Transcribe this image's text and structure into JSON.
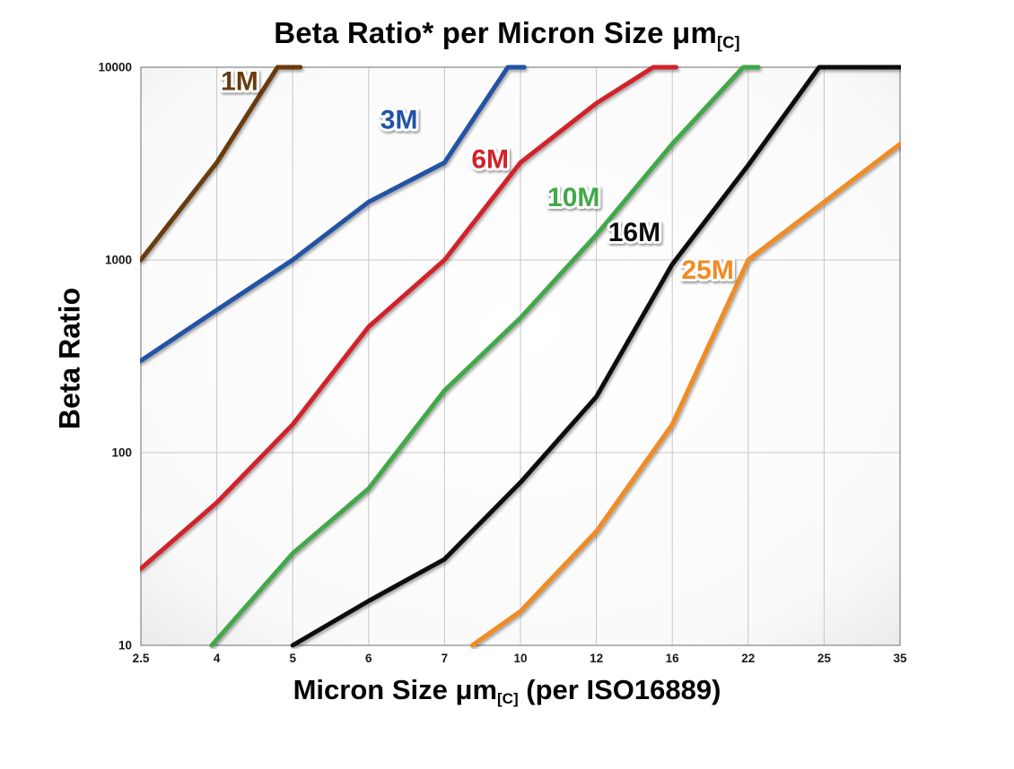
{
  "title": {
    "text": "Beta Ratio* per Micron Size μm",
    "subscript": "[C]"
  },
  "y_axis": {
    "label": "Beta Ratio"
  },
  "x_axis": {
    "label_pre": "Micron Size μm",
    "label_subscript": "[C]",
    "label_post": " (per ISO16889)"
  },
  "chart_data": {
    "type": "line",
    "title": "Beta Ratio* per Micron Size μm[C]",
    "xlabel": "Micron Size μm[C] (per ISO16889)",
    "ylabel": "Beta Ratio",
    "x_scale": "categorical",
    "x_ticks": [
      2.5,
      4,
      5,
      6,
      7,
      10,
      12,
      16,
      22,
      25,
      35
    ],
    "y_scale": "log",
    "y_ticks": [
      10,
      100,
      1000,
      10000
    ],
    "ylim": [
      10,
      10000
    ],
    "grid": true,
    "legend_position": "inline-labels",
    "grid_color": "#c7c7c7",
    "frame_color": "#8f8f8f",
    "series": [
      {
        "name": "1M",
        "color": "#6b3a10",
        "points": [
          [
            2.5,
            1000
          ],
          [
            4,
            3200
          ],
          [
            4.8,
            10000
          ],
          [
            5.1,
            10000
          ]
        ]
      },
      {
        "name": "3M",
        "color": "#2053a4",
        "points": [
          [
            2.5,
            300
          ],
          [
            4,
            550
          ],
          [
            5,
            1000
          ],
          [
            6,
            2000
          ],
          [
            7,
            3200
          ],
          [
            9.5,
            10000
          ],
          [
            10.1,
            10000
          ]
        ]
      },
      {
        "name": "6M",
        "color": "#d2202a",
        "points": [
          [
            2.5,
            25
          ],
          [
            4,
            55
          ],
          [
            5,
            140
          ],
          [
            6,
            450
          ],
          [
            7,
            1000
          ],
          [
            10,
            3200
          ],
          [
            12,
            6500
          ],
          [
            15,
            10000
          ],
          [
            16.3,
            10000
          ]
        ]
      },
      {
        "name": "10M",
        "color": "#43a848",
        "points": [
          [
            3.9,
            10
          ],
          [
            5,
            30
          ],
          [
            6,
            65
          ],
          [
            7,
            210
          ],
          [
            10,
            500
          ],
          [
            12,
            1350
          ],
          [
            16,
            4000
          ],
          [
            21.6,
            10000
          ],
          [
            22.4,
            10000
          ]
        ]
      },
      {
        "name": "16M",
        "color": "#0b0b0b",
        "points": [
          [
            5,
            10
          ],
          [
            6,
            17
          ],
          [
            7,
            28
          ],
          [
            10,
            70
          ],
          [
            12,
            195
          ],
          [
            16,
            950
          ],
          [
            22,
            3100
          ],
          [
            24.8,
            10000
          ],
          [
            35,
            10000
          ]
        ]
      },
      {
        "name": "25M",
        "color": "#f18b21",
        "points": [
          [
            8.1,
            10
          ],
          [
            10,
            15
          ],
          [
            12,
            39
          ],
          [
            16,
            140
          ],
          [
            22,
            1000
          ],
          [
            25,
            2000
          ],
          [
            35,
            4000
          ]
        ]
      }
    ],
    "annotations": [
      {
        "text": "1M",
        "color": "#6b3a10",
        "x": 4.3,
        "y": 7600
      },
      {
        "text": "3M",
        "color": "#2053a4",
        "x": 6.4,
        "y": 4800
      },
      {
        "text": "6M",
        "color": "#d2202a",
        "x": 8.8,
        "y": 3000
      },
      {
        "text": "10M",
        "color": "#43a848",
        "x": 11.4,
        "y": 1900
      },
      {
        "text": "16M",
        "color": "#0b0b0b",
        "x": 14.0,
        "y": 1250
      },
      {
        "text": "25M",
        "color": "#f18b21",
        "x": 18.8,
        "y": 800
      }
    ]
  }
}
